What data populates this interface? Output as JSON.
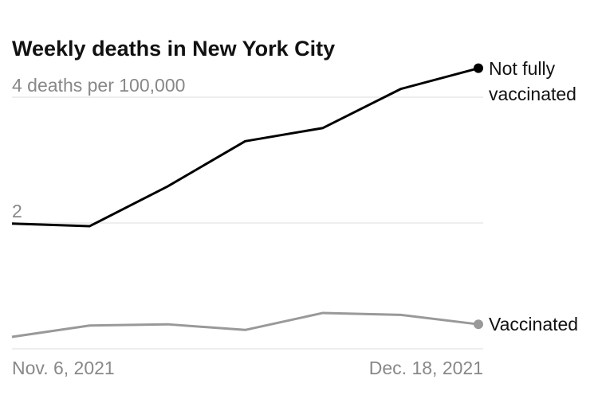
{
  "chart_data": {
    "type": "line",
    "title": "Weekly deaths in New York City",
    "categories": [
      "Nov. 6, 2021",
      null,
      null,
      null,
      null,
      null,
      "Dec. 18, 2021"
    ],
    "series": [
      {
        "name": "Not fully vaccinated",
        "color": "#000000",
        "values": [
          1.99,
          1.95,
          2.58,
          3.3,
          3.51,
          4.13,
          4.46
        ]
      },
      {
        "name": "Vaccinated",
        "color": "#999999",
        "values": [
          0.19,
          0.37,
          0.39,
          0.3,
          0.57,
          0.54,
          0.39
        ]
      }
    ],
    "ylim": [
      0,
      4.5
    ],
    "yticks": [
      2,
      {
        "value": 4,
        "label": "4 deaths per 100,000"
      }
    ],
    "grid": true
  }
}
